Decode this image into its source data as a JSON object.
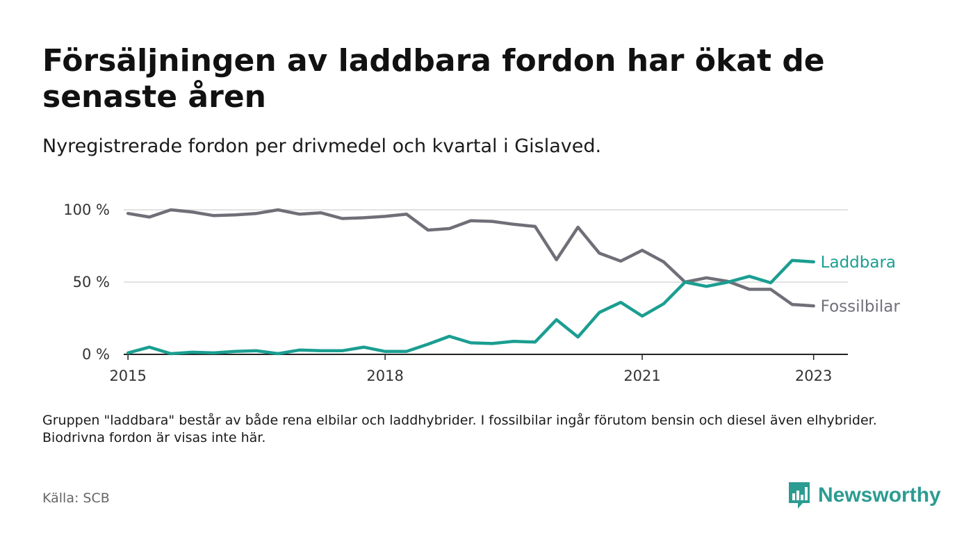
{
  "title": "Försäljningen av laddbara fordon har ökat de senaste åren",
  "subtitle": "Nyregistrerade fordon per drivmedel och kvartal i Gislaved.",
  "note": "Gruppen \"laddbara\" består av både rena elbilar och laddhybrider. I fossilbilar ingår förutom bensin och diesel även elhybrider. Biodrivna fordon är visas inte här.",
  "source": "Källa: SCB",
  "brand": {
    "name": "Newsworthy",
    "color": "#2b9c92"
  },
  "chart_data": {
    "type": "line",
    "x_start": 2015,
    "x_step": 0.25,
    "xlim": [
      2014.95,
      2023.4
    ],
    "ylim": [
      0,
      100
    ],
    "y_ticks": [
      0,
      50,
      100
    ],
    "y_tick_labels": [
      "0 %",
      "50 %",
      "100 %"
    ],
    "x_ticks": [
      2015,
      2018,
      2021,
      2023
    ],
    "x_tick_labels": [
      "2015",
      "2018",
      "2021",
      "2023"
    ],
    "grid": true,
    "legend": "inline labels at line ends",
    "series": [
      {
        "name": "Laddbara",
        "color": "#1a9e91",
        "values": [
          1,
          5,
          0.5,
          1.5,
          1,
          2,
          2.5,
          0.5,
          3,
          2.5,
          2.5,
          5,
          2,
          2,
          7,
          12.5,
          8,
          7.5,
          9,
          8.5,
          24,
          12,
          29,
          36,
          26.5,
          35,
          50,
          47,
          50,
          54,
          49.5,
          65,
          64
        ]
      },
      {
        "name": "Fossilbilar",
        "color": "#6f6f78",
        "values": [
          97.5,
          95,
          100,
          98.5,
          96,
          96.5,
          97.5,
          100,
          97,
          98,
          94,
          94.5,
          95.5,
          97,
          86,
          87,
          92.5,
          92,
          90,
          88.5,
          65.5,
          88,
          70,
          64.5,
          72,
          64,
          50,
          53,
          50.5,
          45,
          45,
          34.5,
          33.5
        ]
      }
    ]
  }
}
